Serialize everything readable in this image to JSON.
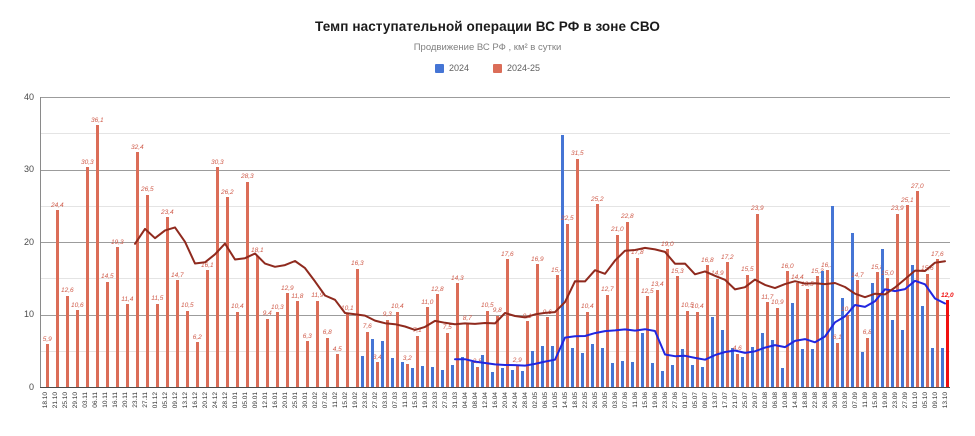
{
  "chart_data": {
    "type": "bar",
    "title": "Темп наступательной операции ВС РФ в зоне СВО",
    "subtitle": "Продвижение ВС РФ , км² в сутки",
    "legend": [
      {
        "label": "2024",
        "color": "#4575d5"
      },
      {
        "label": "2024-25",
        "color": "#db6d58"
      }
    ],
    "ylim": [
      0,
      40
    ],
    "yticks": [
      0,
      10,
      20,
      30,
      40
    ],
    "grid_minor_step": 5,
    "decimal_separator": ",",
    "categories": [
      "18.10",
      "21.10",
      "25.10",
      "29.10",
      "03.11",
      "06.11",
      "10.11",
      "16.11",
      "20.11",
      "23.11",
      "27.11",
      "01.12",
      "05.12",
      "09.12",
      "13.12",
      "16.12",
      "20.12",
      "24.12",
      "28.12",
      "01.01",
      "05.01",
      "09.01",
      "12.01",
      "16.01",
      "20.01",
      "25.01",
      "30.01",
      "02.02",
      "07.02",
      "11.02",
      "15.02",
      "19.02",
      "23.02",
      "27.02",
      "03.03",
      "07.03",
      "11.03",
      "15.03",
      "19.03",
      "23.03",
      "27.03",
      "31.03",
      "04.04",
      "08.04",
      "12.04",
      "16.04",
      "20.04",
      "24.04",
      "28.04",
      "02.05",
      "06.05",
      "10.05",
      "14.05",
      "18.05",
      "22.05",
      "26.05",
      "30.05",
      "03.06",
      "07.06",
      "11.06",
      "15.06",
      "19.06",
      "23.06",
      "27.06",
      "01.07",
      "05.07",
      "09.07",
      "13.07",
      "17.07",
      "21.07",
      "25.07",
      "29.07",
      "02.08",
      "06.08",
      "10.08",
      "14.08",
      "18.08",
      "22.08",
      "26.08",
      "30.08",
      "03.09",
      "07.09",
      "11.09",
      "15.09",
      "19.09",
      "23.09",
      "27.09",
      "01.10",
      "05.10",
      "09.10",
      "13.10"
    ],
    "series": [
      {
        "name": "2024",
        "color": "#4575d5",
        "show_labels": false,
        "values": [
          null,
          null,
          null,
          null,
          null,
          null,
          null,
          null,
          null,
          null,
          null,
          null,
          null,
          null,
          null,
          null,
          null,
          null,
          null,
          null,
          null,
          null,
          null,
          null,
          null,
          null,
          null,
          null,
          null,
          null,
          null,
          null,
          4.3,
          6.6,
          6.4,
          4.0,
          3.4,
          2.6,
          2.9,
          2.7,
          2.4,
          3.1,
          4.2,
          3.4,
          4.4,
          2.1,
          2.6,
          2.4,
          2.2,
          5.0,
          5.6,
          5.7,
          34.7,
          5.4,
          4.7,
          6.0,
          5.4,
          3.3,
          3.6,
          3.4,
          7.5,
          3.3,
          2.2,
          3.1,
          5.3,
          3.1,
          2.8,
          9.7,
          7.9,
          5.4,
          4.2,
          5.5,
          7.4,
          6.5,
          2.6,
          11.6,
          5.2,
          5.3,
          16.0,
          25.0,
          12.3,
          21.2,
          4.8,
          14.3,
          19.0,
          9.2,
          7.9,
          16.8,
          11.2,
          5.4,
          5.4
        ]
      },
      {
        "name": "2024-25",
        "color": "#db6d58",
        "show_labels": true,
        "label_color": "#cf5a49",
        "values": [
          5.9,
          24.4,
          12.6,
          10.6,
          30.3,
          36.1,
          14.5,
          19.3,
          11.4,
          32.4,
          26.5,
          11.5,
          23.4,
          14.7,
          10.5,
          6.2,
          16.1,
          30.3,
          26.2,
          10.4,
          28.3,
          18.1,
          9.4,
          10.3,
          12.9,
          11.8,
          6.3,
          11.9,
          6.8,
          4.5,
          10.1,
          16.3,
          7.6,
          3.4,
          9.3,
          10.4,
          3.2,
          7.1,
          11.0,
          12.8,
          7.5,
          14.3,
          8.7,
          2.8,
          10.5,
          9.8,
          17.6,
          2.9,
          9.1,
          16.9,
          9.6,
          15.4,
          22.5,
          31.5,
          10.4,
          25.2,
          12.7,
          21.0,
          22.8,
          17.8,
          12.5,
          13.4,
          19.0,
          15.3,
          10.5,
          10.4,
          16.8,
          14.9,
          17.2,
          4.6,
          15.5,
          23.9,
          11.7,
          10.9,
          16.0,
          14.4,
          13.5,
          15.3,
          16.1,
          6.1,
          10.0,
          14.7,
          6.8,
          15.8,
          15.0,
          23.9,
          25.1,
          27.0,
          15.6,
          17.6,
          12.0
        ]
      }
    ],
    "highlight_last_bar": {
      "series": "2024-25",
      "color": "#f01010",
      "label_color": "#f01010"
    },
    "trend_lines": [
      {
        "series": "2024",
        "color": "#2126e0",
        "window": 10
      },
      {
        "series": "2024-25",
        "color": "#8f2a1e",
        "window": 10
      }
    ]
  }
}
